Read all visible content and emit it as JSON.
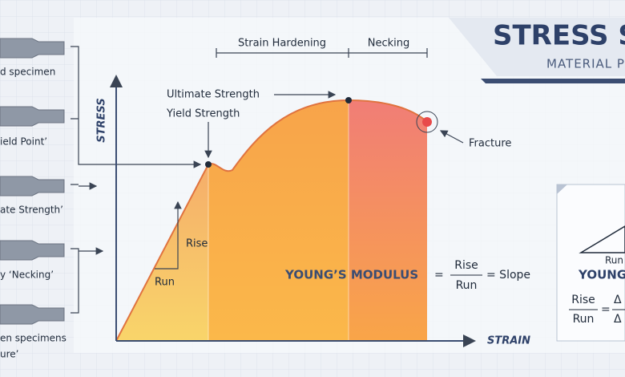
{
  "header": {
    "title": "STRESS S",
    "subtitle": "MATERIAL PR"
  },
  "specimens": [
    "d specimen",
    "ield Point’",
    "ate Strength’",
    "y ‘Necking’",
    "en specimens",
    "ure’"
  ],
  "regions": [
    "Strain Hardening",
    "Necking"
  ],
  "axes": {
    "y": "STRESS",
    "x": "STRAIN"
  },
  "annotations": {
    "ultimate": "Ultimate Strength",
    "yield": "Yield Strength",
    "fracture": "Fracture",
    "rise": "Rise",
    "run": "Run",
    "modulus": "YOUNG’S MODULUS"
  },
  "formula": {
    "equals": "=",
    "rise": "Rise",
    "run": "Run",
    "slope": "= Slope"
  },
  "panel": {
    "run": "Run",
    "title": "YOUNG",
    "rise": "Rise",
    "run2": "Run",
    "equals": "=",
    "delta1": "Δ",
    "delta2": "Δ"
  }
}
